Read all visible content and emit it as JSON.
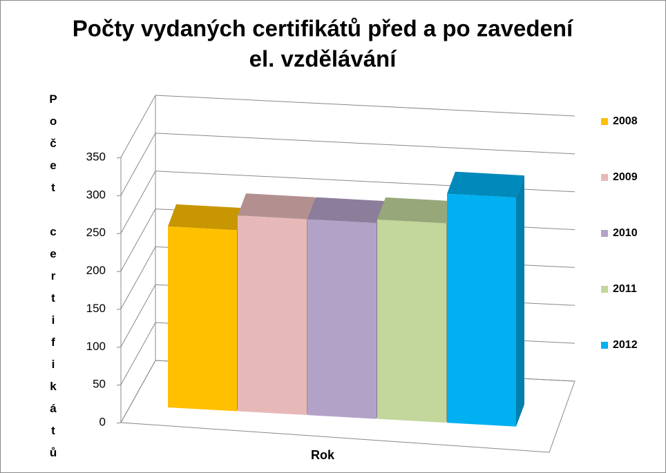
{
  "chart_data": {
    "type": "bar3d",
    "title": [
      "Počty vydaných certifikátů před a po zavedení",
      "el. vzdělávání"
    ],
    "ylabel": "Počet certifikátů",
    "xlabel": "Rok",
    "categories": [
      null
    ],
    "series": [
      {
        "name": "2008",
        "color": "#FFC000",
        "values": [
          245
        ]
      },
      {
        "name": "2009",
        "color": "#E6B9B8",
        "values": [
          265
        ]
      },
      {
        "name": "2010",
        "color": "#B3A2C7",
        "values": [
          265
        ]
      },
      {
        "name": "2011",
        "color": "#C3D69B",
        "values": [
          270
        ]
      },
      {
        "name": "2012",
        "color": "#00B0F0",
        "values": [
          310
        ]
      }
    ],
    "ylim": [
      0,
      350
    ],
    "yticks": [
      0,
      50,
      100,
      150,
      200,
      250,
      300,
      350
    ],
    "grid": true,
    "legend": "right"
  }
}
